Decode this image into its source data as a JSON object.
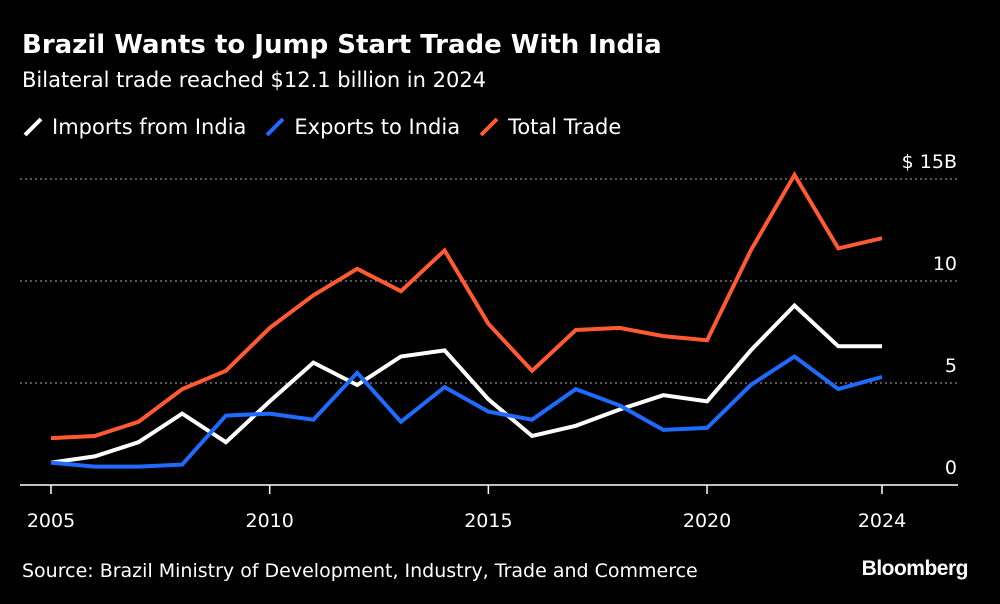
{
  "title": "Brazil Wants to Jump Start Trade With India",
  "subtitle": "Bilateral trade reached $12.1 billion in 2024",
  "source": "Source: Brazil Ministry of Development, Industry, Trade and Commerce",
  "brand": "Bloomberg",
  "chart_data": {
    "type": "line",
    "title": "Brazil Wants to Jump Start Trade With India",
    "subtitle": "Bilateral trade reached $12.1 billion in 2024",
    "x": [
      2005,
      2006,
      2007,
      2008,
      2009,
      2010,
      2011,
      2012,
      2013,
      2014,
      2015,
      2016,
      2017,
      2018,
      2019,
      2020,
      2021,
      2022,
      2023,
      2024
    ],
    "xlim": [
      2005,
      2024
    ],
    "ylim": [
      0,
      15
    ],
    "x_ticks": [
      2005,
      2010,
      2015,
      2020,
      2024
    ],
    "x_tick_labels": [
      "2005",
      "2010",
      "2015",
      "2020",
      "2024"
    ],
    "y_ticks": [
      0,
      5,
      10,
      15
    ],
    "y_tick_labels": [
      "0",
      "5",
      "10",
      "$ 15B"
    ],
    "grid": true,
    "legend_position": "top-left",
    "series": [
      {
        "name": "Imports from India",
        "color": "#ffffff",
        "values": [
          1.1,
          1.4,
          2.1,
          3.5,
          2.1,
          4.1,
          6.0,
          4.9,
          6.3,
          6.6,
          4.2,
          2.4,
          2.9,
          3.7,
          4.4,
          4.1,
          6.6,
          8.8,
          6.8,
          6.8
        ]
      },
      {
        "name": "Exports to India",
        "color": "#1f6bff",
        "values": [
          1.1,
          0.9,
          0.9,
          1.0,
          3.4,
          3.5,
          3.2,
          5.5,
          3.1,
          4.8,
          3.6,
          3.2,
          4.7,
          3.9,
          2.7,
          2.8,
          4.9,
          6.3,
          4.7,
          5.3
        ]
      },
      {
        "name": "Total Trade",
        "color": "#ff5a32",
        "values": [
          2.3,
          2.4,
          3.1,
          4.7,
          5.6,
          7.7,
          9.3,
          10.6,
          9.5,
          11.5,
          7.9,
          5.6,
          7.6,
          7.7,
          7.3,
          7.1,
          11.5,
          15.2,
          11.6,
          12.1
        ]
      }
    ]
  }
}
